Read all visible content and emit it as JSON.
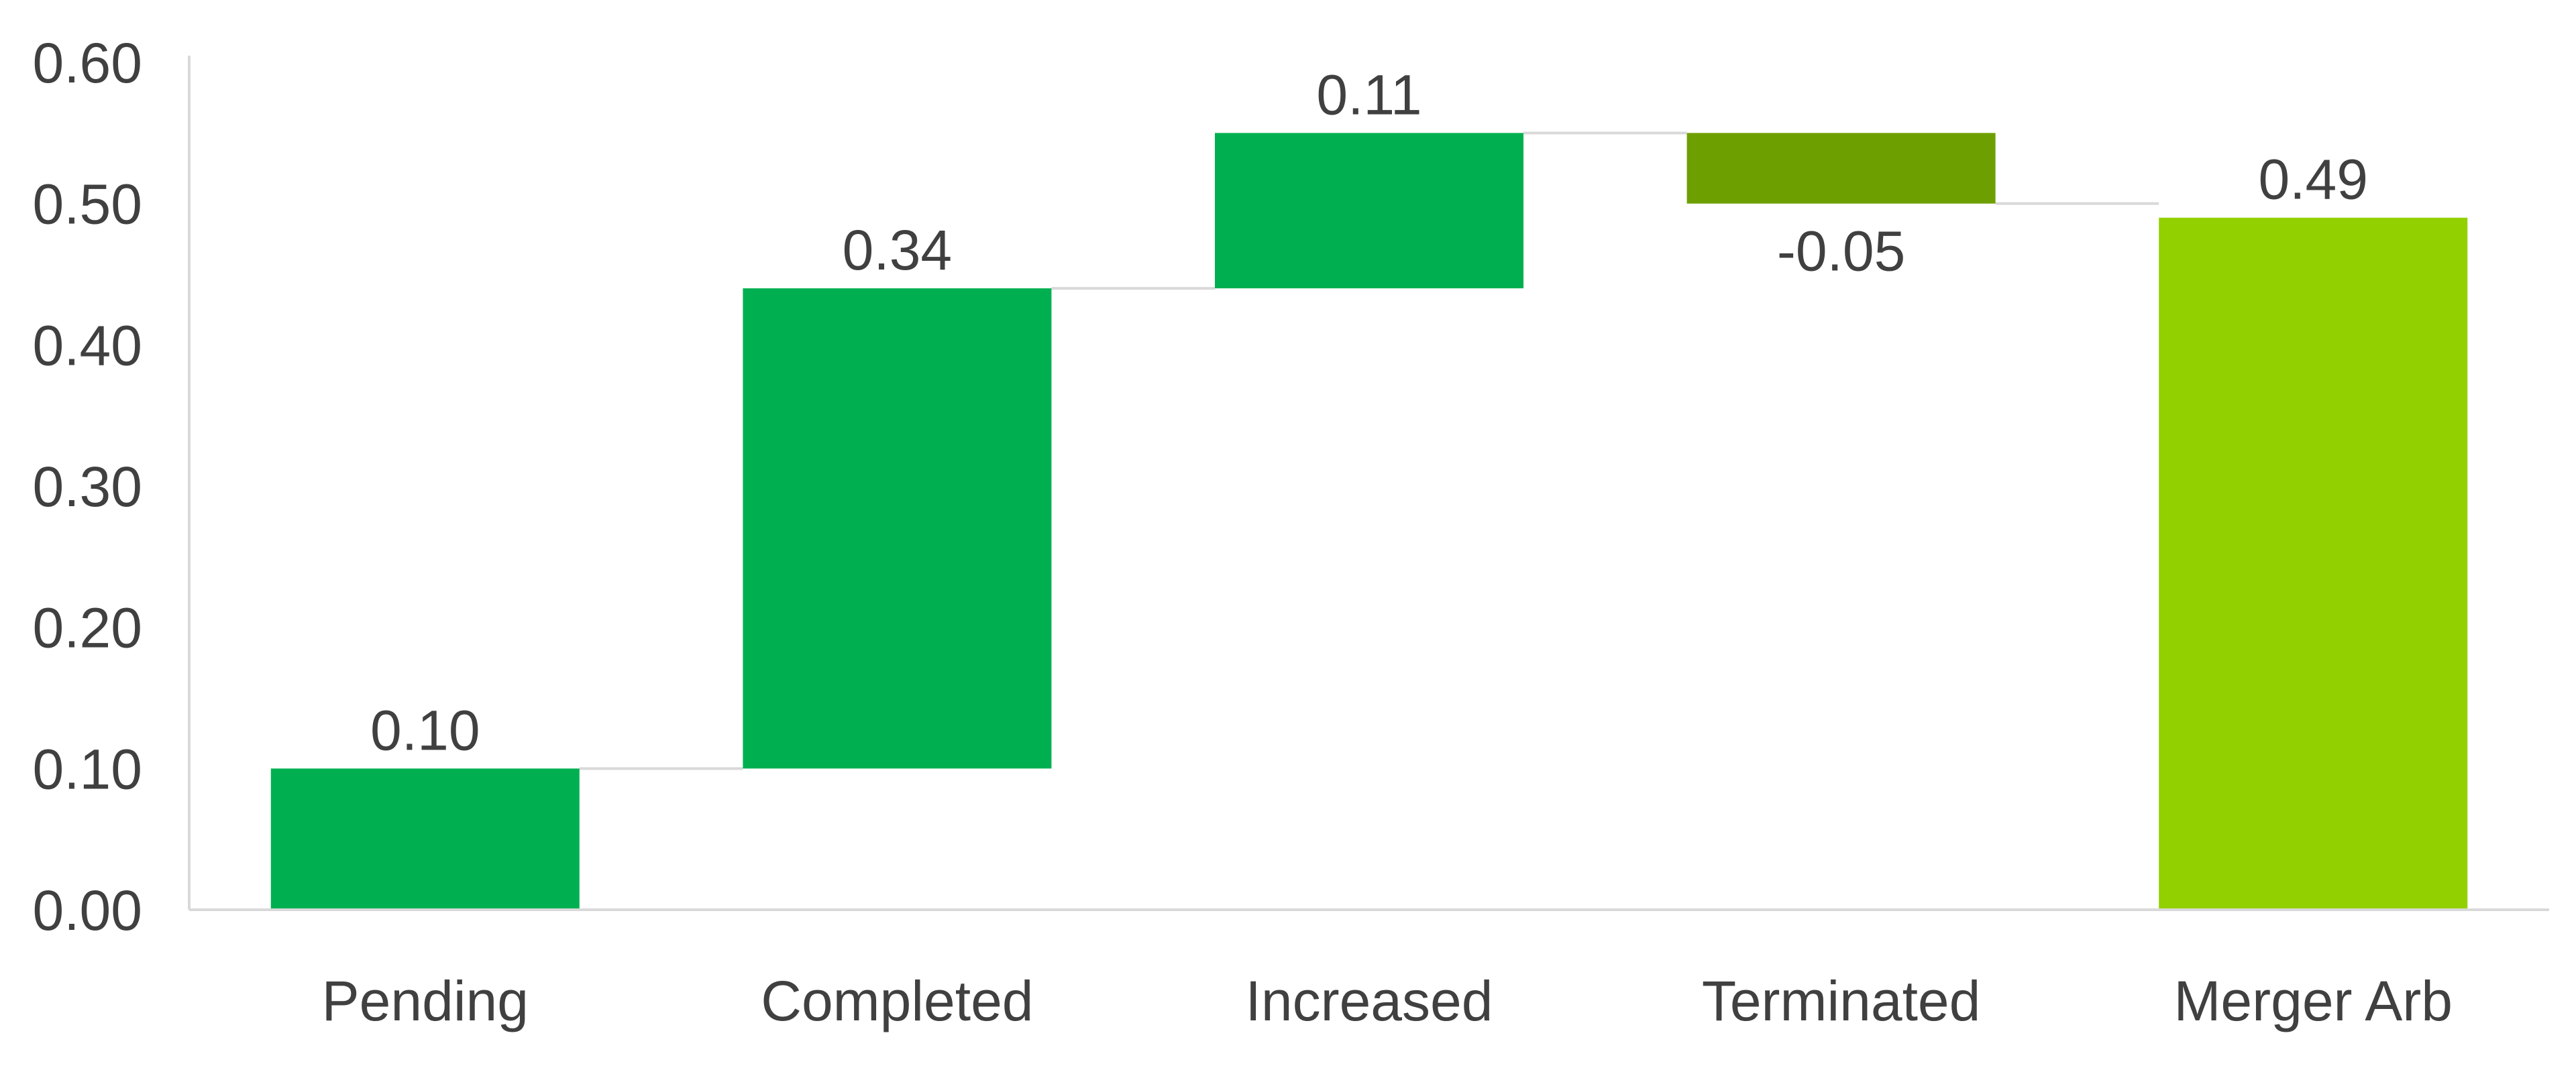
{
  "chart_data": {
    "type": "bar",
    "subtype": "waterfall",
    "categories": [
      "Pending",
      "Completed",
      "Increased",
      "Terminated",
      "Merger Arb"
    ],
    "values": [
      0.1,
      0.34,
      0.11,
      -0.05,
      0.49
    ],
    "value_labels": [
      "0.10",
      "0.34",
      "0.11",
      "-0.05",
      "0.49"
    ],
    "kinds": [
      "delta",
      "delta",
      "delta",
      "delta",
      "total"
    ],
    "ylim": [
      0,
      0.6
    ],
    "yticks": [
      0,
      0.1,
      0.2,
      0.3,
      0.4,
      0.5,
      0.6
    ],
    "ytick_labels": [
      "0.00",
      "0.10",
      "0.20",
      "0.30",
      "0.40",
      "0.50",
      "0.60"
    ],
    "colors": {
      "increase": "#00B050",
      "decrease": "#6E9F00",
      "total": "#92D000",
      "connector": "#D9D9D9",
      "axis": "#D9D9D9",
      "text": "#404040"
    },
    "grid": false,
    "legend": "none",
    "title": "",
    "xlabel": "",
    "ylabel": ""
  }
}
